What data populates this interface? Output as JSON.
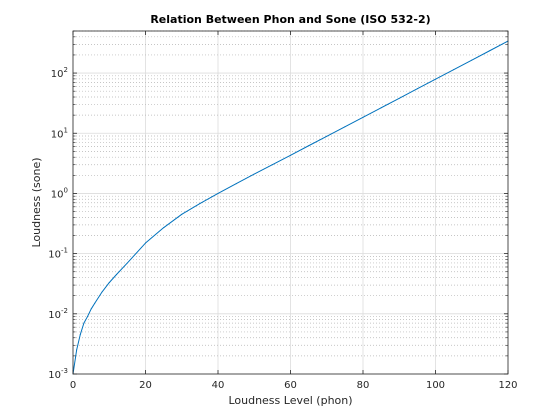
{
  "chart_data": {
    "type": "line",
    "title": "Relation Between Phon and Sone (ISO 532-2)",
    "xlabel": "Loudness Level (phon)",
    "ylabel": "Loudness (sone)",
    "xlim": [
      0,
      120
    ],
    "ylim": [
      0.001,
      500
    ],
    "yscale": "log",
    "grid": true,
    "minor_grid": true,
    "x_ticks": [
      "0",
      "20",
      "40",
      "60",
      "80",
      "100",
      "120"
    ],
    "y_ticks": [
      {
        "base": "10",
        "exp": "-3"
      },
      {
        "base": "10",
        "exp": "-2"
      },
      {
        "base": "10",
        "exp": "-1"
      },
      {
        "base": "10",
        "exp": "0"
      },
      {
        "base": "10",
        "exp": "1"
      },
      {
        "base": "10",
        "exp": "2"
      }
    ],
    "series": [
      {
        "color": "#0072BD",
        "x": [
          0,
          1,
          2,
          3,
          4,
          5,
          6,
          8,
          10,
          12,
          15,
          20,
          25,
          30,
          35,
          40,
          45,
          50,
          55,
          60,
          65,
          70,
          75,
          80,
          85,
          90,
          95,
          100,
          105,
          110,
          115,
          120
        ],
        "y": [
          0.001,
          0.0025,
          0.0045,
          0.007,
          0.009,
          0.012,
          0.015,
          0.023,
          0.033,
          0.045,
          0.07,
          0.15,
          0.27,
          0.45,
          0.68,
          1.0,
          1.45,
          2.1,
          3.0,
          4.3,
          6.2,
          8.9,
          12.8,
          18.4,
          26.5,
          38,
          55,
          79,
          114,
          164,
          236,
          340
        ]
      }
    ]
  }
}
